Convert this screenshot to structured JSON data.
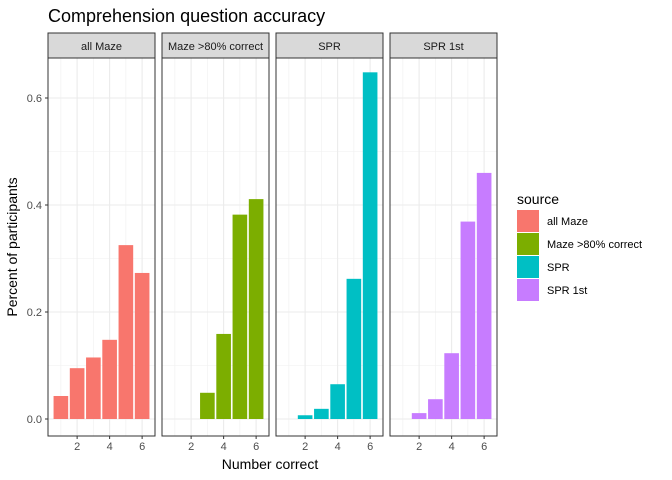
{
  "chart_data": {
    "type": "bar",
    "title": "Comprehension question accuracy",
    "xlabel": "Number correct",
    "ylabel": "Percent of participants",
    "x_ticks": [
      2,
      4,
      6
    ],
    "y_ticks": [
      "0.0",
      "0.2",
      "0.4",
      "0.6"
    ],
    "ylim": [
      0,
      0.68
    ],
    "xlim": [
      0.4,
      6.6
    ],
    "grid": true,
    "legend": {
      "title": "source",
      "position": "right",
      "entries": [
        "all Maze",
        "Maze >80% correct",
        "SPR",
        "SPR 1st"
      ]
    },
    "colors": {
      "all Maze": "#F8766D",
      "Maze >80% correct": "#7CAE00",
      "SPR": "#00BFC4",
      "SPR 1st": "#C77CFF"
    },
    "series": [
      {
        "name": "all Maze",
        "strip_label": "all Maze",
        "x": [
          1,
          2,
          3,
          4,
          5,
          6
        ],
        "values": [
          0.043,
          0.095,
          0.115,
          0.148,
          0.325,
          0.273
        ]
      },
      {
        "name": "Maze >80% correct",
        "strip_label": "Maze >80% correct",
        "x": [
          3,
          4,
          5,
          6
        ],
        "values": [
          0.049,
          0.159,
          0.382,
          0.411
        ]
      },
      {
        "name": "SPR",
        "strip_label": "SPR",
        "x": [
          2,
          3,
          4,
          5,
          6
        ],
        "values": [
          0.007,
          0.019,
          0.065,
          0.262,
          0.648
        ]
      },
      {
        "name": "SPR 1st",
        "strip_label": "SPR 1st",
        "x": [
          2,
          3,
          4,
          5,
          6
        ],
        "values": [
          0.011,
          0.037,
          0.123,
          0.369,
          0.46
        ]
      }
    ]
  }
}
